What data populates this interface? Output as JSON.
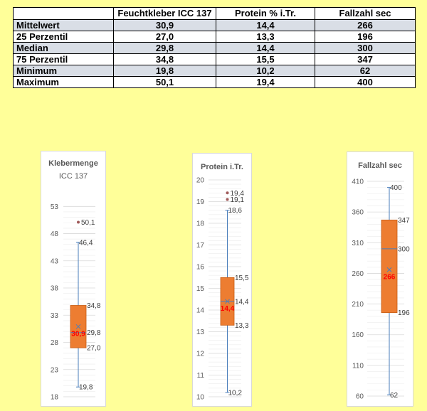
{
  "table": {
    "headers": [
      "",
      "Feuchtkleber ICC 137",
      "Protein % i.Tr.",
      "Fallzahl sec"
    ],
    "rows": [
      {
        "label": "Mittelwert",
        "values": [
          "30,9",
          "14,4",
          "266"
        ],
        "shaded": true
      },
      {
        "label": "25 Perzentil",
        "values": [
          "27,0",
          "13,3",
          "196"
        ],
        "shaded": false
      },
      {
        "label": "Median",
        "values": [
          "29,8",
          "14,4",
          "300"
        ],
        "shaded": true
      },
      {
        "label": "75 Perzentil",
        "values": [
          "34,8",
          "15,5",
          "347"
        ],
        "shaded": false
      },
      {
        "label": "Minimum",
        "values": [
          "19,8",
          "10,2",
          "62"
        ],
        "shaded": true
      },
      {
        "label": "Maximum",
        "values": [
          "50,1",
          "19,4",
          "400"
        ],
        "shaded": false
      }
    ]
  },
  "colors": {
    "box_fill": "#ed7d31",
    "whisker": "#4a7ebb",
    "mean_label": "#ff0000",
    "outlier": "#a05a5a",
    "grid": "#d9d9d9"
  },
  "chart_data": [
    {
      "type": "box",
      "title": "Klebermenge",
      "subtitle": "ICC 137",
      "ylim": [
        18,
        55
      ],
      "ticks": [
        18,
        23,
        28,
        33,
        38,
        43,
        48,
        53
      ],
      "stats": {
        "min": 19.8,
        "q1": 27.0,
        "median": 29.8,
        "q3": 34.8,
        "max": 46.4,
        "mean": 30.9
      },
      "outliers": [
        50.1
      ],
      "labels": {
        "min": "19,8",
        "q1": "27,0",
        "median": "29,8",
        "q3": "34,8",
        "max": "46,4",
        "mean": "30,9",
        "outliers": [
          "50,1"
        ]
      }
    },
    {
      "type": "box",
      "title": "Protein i.Tr.",
      "subtitle": "",
      "ylim": [
        10,
        20
      ],
      "ticks": [
        10,
        11,
        12,
        13,
        14,
        15,
        16,
        17,
        18,
        19,
        20
      ],
      "stats": {
        "min": 10.2,
        "q1": 13.3,
        "median": 14.4,
        "q3": 15.5,
        "max": 18.6,
        "mean": 14.4
      },
      "outliers": [
        19.1,
        19.4
      ],
      "labels": {
        "min": "10,2",
        "q1": "13,3",
        "median": "14,4",
        "q3": "15,5",
        "max": "18,6",
        "mean": "14,4",
        "outliers": [
          "19,1",
          "19,4"
        ]
      }
    },
    {
      "type": "box",
      "title": "Fallzahl sec",
      "subtitle": "",
      "ylim": [
        60,
        410
      ],
      "ticks": [
        60,
        110,
        160,
        210,
        260,
        310,
        360,
        410
      ],
      "stats": {
        "min": 62,
        "q1": 196,
        "median": 300,
        "q3": 347,
        "max": 400,
        "mean": 266
      },
      "outliers": [],
      "labels": {
        "min": "62",
        "q1": "196",
        "median": "300",
        "q3": "347",
        "max": "400",
        "mean": "266",
        "outliers": []
      }
    }
  ]
}
